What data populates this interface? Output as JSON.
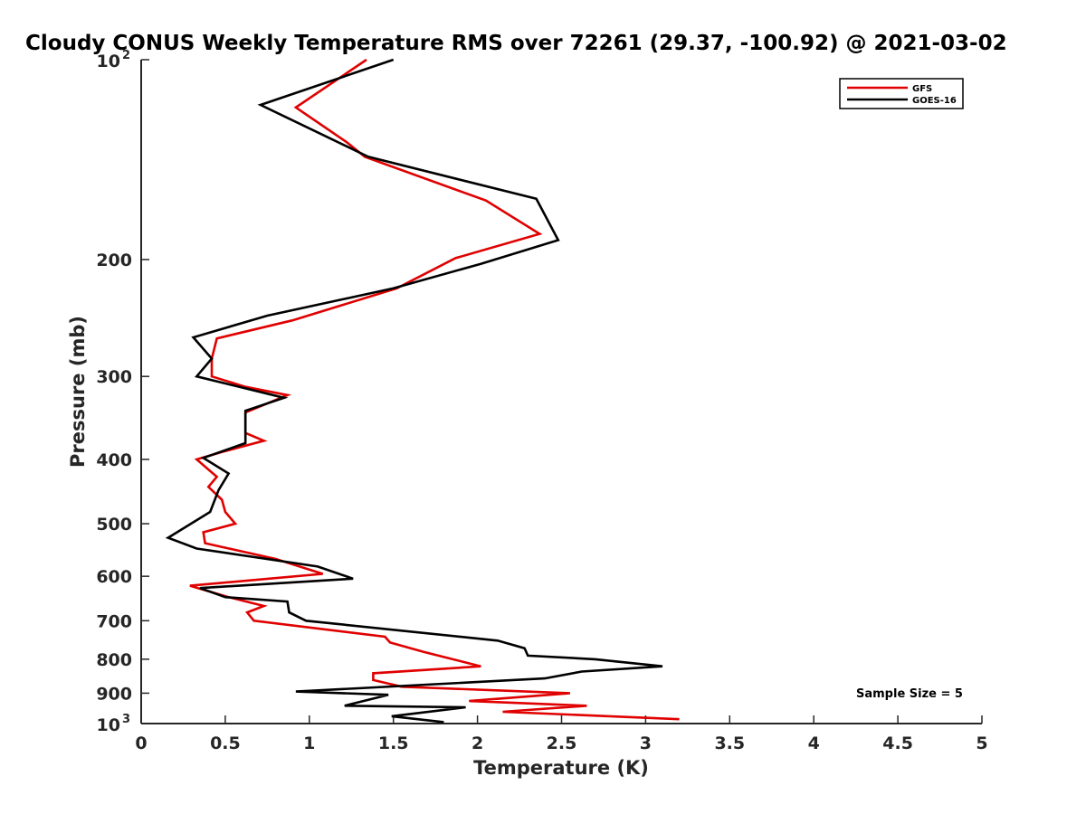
{
  "chart_data": {
    "type": "line",
    "title": "Cloudy CONUS Weekly Temperature RMS over 72261 (29.37, -100.92) @ 2021-03-02",
    "xlabel": "Temperature (K)",
    "ylabel": "Pressure (mb)",
    "xlim": [
      0,
      5
    ],
    "ylim": [
      100,
      1000
    ],
    "y_scale": "log",
    "y_reversed": true,
    "grid": false,
    "legend_position": "top-right",
    "x_ticks": [
      "0",
      "0.5",
      "1",
      "1.5",
      "2",
      "2.5",
      "3",
      "3.5",
      "4",
      "4.5",
      "5"
    ],
    "x_tick_values": [
      0,
      0.5,
      1,
      1.5,
      2,
      2.5,
      3,
      3.5,
      4,
      4.5,
      5
    ],
    "y_ticks": [
      {
        "value": 100,
        "base": "10",
        "exp": "2"
      },
      {
        "value": 200,
        "label": "200"
      },
      {
        "value": 300,
        "label": "300"
      },
      {
        "value": 400,
        "label": "400"
      },
      {
        "value": 500,
        "label": "500"
      },
      {
        "value": 600,
        "label": "600"
      },
      {
        "value": 700,
        "label": "700"
      },
      {
        "value": 800,
        "label": "800"
      },
      {
        "value": 900,
        "label": "900"
      },
      {
        "value": 1000,
        "base": "10",
        "exp": "3"
      }
    ],
    "annotation": "Sample Size = 5",
    "series": [
      {
        "name": "GFS",
        "color": "#e00000",
        "points": [
          [
            1.34,
            100
          ],
          [
            0.92,
            118
          ],
          [
            1.22,
            133
          ],
          [
            1.33,
            140
          ],
          [
            2.05,
            163
          ],
          [
            2.37,
            183
          ],
          [
            1.87,
            199
          ],
          [
            1.52,
            221
          ],
          [
            0.9,
            247
          ],
          [
            0.45,
            263
          ],
          [
            0.42,
            282
          ],
          [
            0.42,
            300
          ],
          [
            0.62,
            311
          ],
          [
            0.87,
            320
          ],
          [
            0.62,
            340
          ],
          [
            0.62,
            365
          ],
          [
            0.73,
            375
          ],
          [
            0.48,
            390
          ],
          [
            0.33,
            400
          ],
          [
            0.45,
            425
          ],
          [
            0.4,
            440
          ],
          [
            0.48,
            460
          ],
          [
            0.5,
            480
          ],
          [
            0.56,
            500
          ],
          [
            0.37,
            515
          ],
          [
            0.38,
            535
          ],
          [
            0.8,
            565
          ],
          [
            1.08,
            595
          ],
          [
            0.29,
            620
          ],
          [
            0.52,
            645
          ],
          [
            0.73,
            665
          ],
          [
            0.63,
            680
          ],
          [
            0.67,
            700
          ],
          [
            1.45,
            740
          ],
          [
            1.48,
            755
          ],
          [
            1.68,
            780
          ],
          [
            2.02,
            820
          ],
          [
            1.38,
            840
          ],
          [
            1.38,
            860
          ],
          [
            1.55,
            880
          ],
          [
            2.55,
            900
          ],
          [
            1.95,
            925
          ],
          [
            2.65,
            940
          ],
          [
            2.15,
            960
          ],
          [
            3.2,
            985
          ]
        ]
      },
      {
        "name": "GOES-16",
        "color": "#000000",
        "points": [
          [
            1.5,
            100
          ],
          [
            0.71,
            117
          ],
          [
            1.35,
            140
          ],
          [
            2.35,
            162
          ],
          [
            2.48,
            187
          ],
          [
            2.02,
            203
          ],
          [
            1.5,
            221
          ],
          [
            0.75,
            243
          ],
          [
            0.31,
            262
          ],
          [
            0.42,
            282
          ],
          [
            0.33,
            300
          ],
          [
            0.85,
            323
          ],
          [
            0.62,
            338
          ],
          [
            0.62,
            378
          ],
          [
            0.37,
            398
          ],
          [
            0.52,
            420
          ],
          [
            0.46,
            445
          ],
          [
            0.41,
            480
          ],
          [
            0.16,
            525
          ],
          [
            0.33,
            545
          ],
          [
            1.05,
            580
          ],
          [
            1.26,
            605
          ],
          [
            0.35,
            625
          ],
          [
            0.5,
            645
          ],
          [
            0.87,
            655
          ],
          [
            0.88,
            680
          ],
          [
            0.98,
            700
          ],
          [
            2.12,
            750
          ],
          [
            2.28,
            770
          ],
          [
            2.3,
            790
          ],
          [
            2.7,
            800
          ],
          [
            3.1,
            820
          ],
          [
            2.62,
            835
          ],
          [
            2.4,
            855
          ],
          [
            0.92,
            895
          ],
          [
            1.47,
            905
          ],
          [
            1.21,
            940
          ],
          [
            1.93,
            945
          ],
          [
            1.49,
            975
          ],
          [
            1.8,
            995
          ]
        ]
      }
    ]
  }
}
